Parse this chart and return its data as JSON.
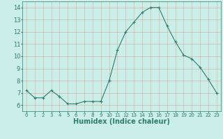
{
  "x": [
    0,
    1,
    2,
    3,
    4,
    5,
    6,
    7,
    8,
    9,
    10,
    11,
    12,
    13,
    14,
    15,
    16,
    17,
    18,
    19,
    20,
    21,
    22,
    23
  ],
  "y": [
    7.2,
    6.6,
    6.6,
    7.2,
    6.7,
    6.1,
    6.1,
    6.3,
    6.3,
    6.3,
    8.0,
    10.5,
    12.0,
    12.8,
    13.6,
    14.0,
    14.0,
    12.5,
    11.2,
    10.1,
    9.8,
    9.1,
    8.1,
    7.0
  ],
  "line_color": "#2d7d6e",
  "marker": "+",
  "marker_size": 3.5,
  "bg_color": "#cceee8",
  "grid_color": "#b8d8d4",
  "xlabel": "Humidex (Indice chaleur)",
  "xlabel_fontsize": 7,
  "tick_fontsize": 6,
  "ylim": [
    5.5,
    14.5
  ],
  "xlim": [
    -0.5,
    23.5
  ],
  "yticks": [
    6,
    7,
    8,
    9,
    10,
    11,
    12,
    13,
    14
  ],
  "xticks": [
    0,
    1,
    2,
    3,
    4,
    5,
    6,
    7,
    8,
    9,
    10,
    11,
    12,
    13,
    14,
    15,
    16,
    17,
    18,
    19,
    20,
    21,
    22,
    23
  ]
}
